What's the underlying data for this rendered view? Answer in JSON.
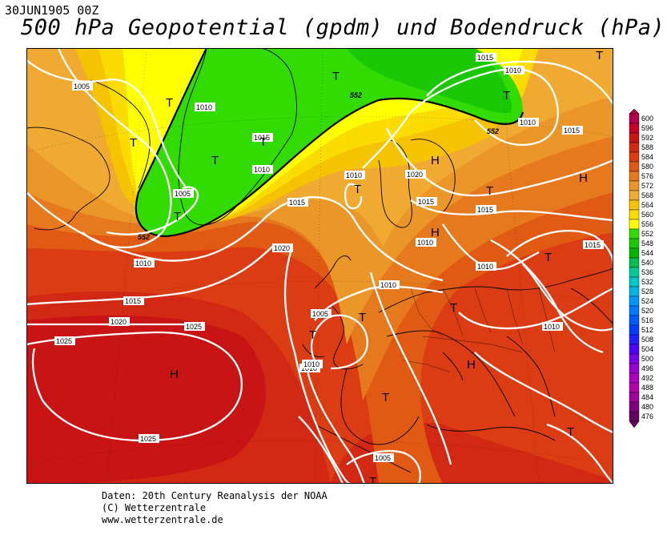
{
  "header": {
    "date": "30JUN1905 00Z",
    "title": "500 hPa Geopotential (gpdm) und Bodendruck (hPa)"
  },
  "footer": {
    "source": "Daten: 20th Century Reanalysis der NOAA",
    "copyright": "(C) Wetterzentrale",
    "url": "www.wetterzentrale.de"
  },
  "legend": {
    "levels": [
      "600",
      "596",
      "592",
      "588",
      "584",
      "580",
      "576",
      "572",
      "568",
      "564",
      "560",
      "556",
      "552",
      "548",
      "544",
      "540",
      "536",
      "532",
      "528",
      "524",
      "520",
      "516",
      "512",
      "508",
      "504",
      "500",
      "496",
      "492",
      "488",
      "484",
      "480",
      "476"
    ],
    "colors": [
      "#b4004b",
      "#c80028",
      "#c81414",
      "#d22814",
      "#dc3c14",
      "#e15a14",
      "#e6781e",
      "#eb9628",
      "#f0aa32",
      "#f5c300",
      "#fadc00",
      "#ffff00",
      "#32dc00",
      "#19c800",
      "#00b400",
      "#00be50",
      "#00c896",
      "#00c8c8",
      "#00b4e6",
      "#0096ff",
      "#0078ff",
      "#005aff",
      "#003cff",
      "#1e1eff",
      "#5000ff",
      "#7800e6",
      "#9600d2",
      "#aa00be",
      "#b400aa",
      "#a00096",
      "#82007d",
      "#640064"
    ]
  },
  "map": {
    "highs": [
      "H",
      "H",
      "H",
      "H",
      "H"
    ],
    "lows": [
      "T",
      "T",
      "T",
      "T",
      "T",
      "T",
      "T",
      "T",
      "T",
      "T",
      "T",
      "T",
      "T",
      "T"
    ],
    "isobar_labels": [
      "1005",
      "1010",
      "1015",
      "1010",
      "1020",
      "1025",
      "1025",
      "1020",
      "1015",
      "1010",
      "1005",
      "1010",
      "1015",
      "1010",
      "1010",
      "1015",
      "1015",
      "1010",
      "1015",
      "1010",
      "1005",
      "1010",
      "1020",
      "1015",
      "1010",
      "1025",
      "1005",
      "1015",
      "1010",
      "1010"
    ],
    "contour_labels": [
      "552",
      "552",
      "552"
    ]
  }
}
